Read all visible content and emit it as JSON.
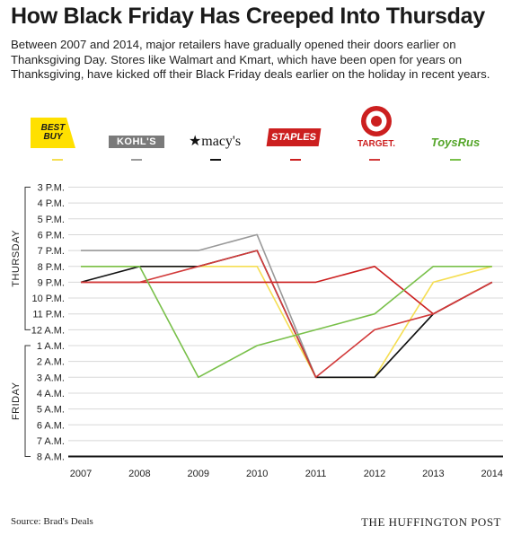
{
  "header": {
    "title": "How Black Friday Has Creeped Into Thursday",
    "subtitle": "Between 2007 and 2014, major retailers have gradually opened their doors earlier on Thanksgiving Day. Stores like Walmart and Kmart, which have been open for years on Thanksgiving, have kicked off their Black Friday deals earlier on the holiday in recent years."
  },
  "logos": {
    "bestbuy": "BEST BUY",
    "kohls": "KOHL'S",
    "macys": "★macy's",
    "staples": "STAPLES",
    "target": "TARGET.",
    "toysrus": "ToysRus"
  },
  "footer": {
    "source": "Source: Brad's Deals",
    "brand": "THE HUFFINGTON POST"
  },
  "chart_data": {
    "type": "line",
    "x": [
      "2007",
      "2008",
      "2009",
      "2010",
      "2011",
      "2012",
      "2013",
      "2014"
    ],
    "y_ticks": [
      "3 P.M.",
      "4 P.M.",
      "5 P.M.",
      "6 P.M.",
      "7 P.M.",
      "8 P.M.",
      "9 P.M.",
      "10 P.M.",
      "11 P.M.",
      "12 A.M.",
      "1 A.M.",
      "2 A.M.",
      "3 A.M.",
      "4 A.M.",
      "5 A.M.",
      "6 A.M.",
      "7 A.M.",
      "8 A.M."
    ],
    "y_groups": [
      "THURSDAY",
      "FRIDAY"
    ],
    "series": [
      {
        "name": "BEST BUY",
        "color": "#f5de52",
        "values": [
          5,
          5,
          5,
          5,
          12,
          12,
          6,
          5
        ]
      },
      {
        "name": "KOHL'S",
        "color": "#999999",
        "values": [
          4,
          4,
          4,
          3,
          12,
          12,
          8,
          6
        ]
      },
      {
        "name": "macy's",
        "color": "#111111",
        "values": [
          6,
          5,
          5,
          4,
          12,
          12,
          8,
          6
        ]
      },
      {
        "name": "STAPLES",
        "color": "#cc1f1f",
        "values": [
          6,
          6,
          6,
          6,
          6,
          5,
          8,
          6
        ]
      },
      {
        "name": "TARGET",
        "color": "#d23a3a",
        "values": [
          6,
          6,
          5,
          4,
          12,
          9,
          8,
          6
        ]
      },
      {
        "name": "ToysRus",
        "color": "#79c04a",
        "values": [
          5,
          5,
          12,
          10,
          9,
          8,
          5,
          5
        ]
      }
    ]
  }
}
